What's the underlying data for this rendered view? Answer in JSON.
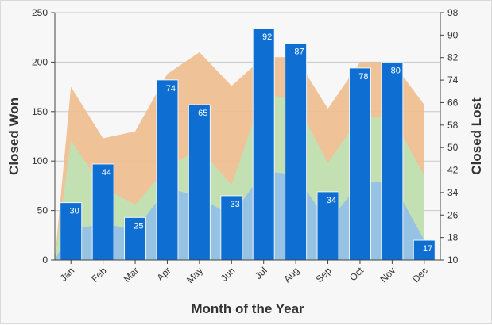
{
  "chart_data": {
    "type": "bar",
    "categories": [
      "Jan",
      "Feb",
      "Mar",
      "Apr",
      "May",
      "Jun",
      "Jul",
      "Aug",
      "Sep",
      "Oct",
      "Nov",
      "Dec"
    ],
    "xlabel": "Month of the Year",
    "ylabel_left": "Closed Won",
    "ylabel_right": "Closed Lost",
    "y_left_range": [
      0,
      250
    ],
    "y_left_ticks": [
      0,
      50,
      100,
      150,
      200,
      250
    ],
    "y_right_range": [
      10,
      98
    ],
    "y_right_ticks": [
      10,
      18,
      26,
      34,
      42,
      50,
      58,
      66,
      74,
      82,
      90,
      98
    ],
    "grid": true,
    "series": [
      {
        "type": "bar",
        "axis": "left",
        "color": "#0e6ed1",
        "values": [
          58,
          97,
          43,
          182,
          157,
          65,
          234,
          219,
          69,
          194,
          200,
          20
        ],
        "labels": [
          30,
          44,
          25,
          74,
          65,
          33,
          92,
          87,
          34,
          78,
          80,
          17
        ]
      },
      {
        "type": "area",
        "axis": "left",
        "color": "#efbd8f",
        "values": [
          175,
          123,
          130,
          188,
          210,
          176,
          205,
          205,
          153,
          200,
          200,
          157
        ]
      },
      {
        "type": "area",
        "axis": "left",
        "color": "#bfe3b4",
        "values": [
          121,
          73,
          56,
          93,
          113,
          76,
          170,
          160,
          98,
          145,
          145,
          85
        ]
      },
      {
        "type": "area",
        "axis": "left",
        "color": "#93bfe8",
        "values": [
          30,
          37,
          30,
          73,
          64,
          44,
          90,
          86,
          38,
          78,
          79,
          20
        ]
      }
    ]
  }
}
